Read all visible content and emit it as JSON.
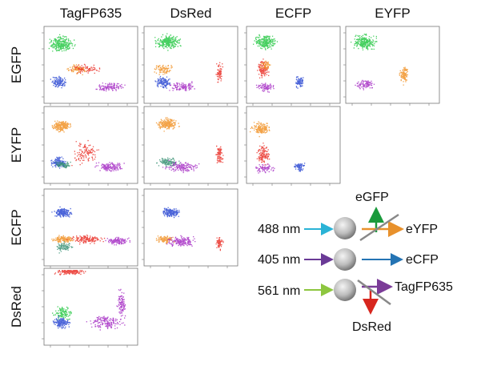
{
  "columns": [
    "TagFP635",
    "DsRed",
    "ECFP",
    "EYFP"
  ],
  "rows": [
    "EGFP",
    "EYFP",
    "ECFP",
    "DsRed"
  ],
  "diagram": {
    "lasers": [
      "488 nm",
      "405 nm",
      "561 nm"
    ],
    "emissions": {
      "egfp": "eGFP",
      "eyfp": "eYFP",
      "ecfp": "eCFP",
      "tagfp635": "TagFP635",
      "dsred": "DsRed"
    }
  }
}
